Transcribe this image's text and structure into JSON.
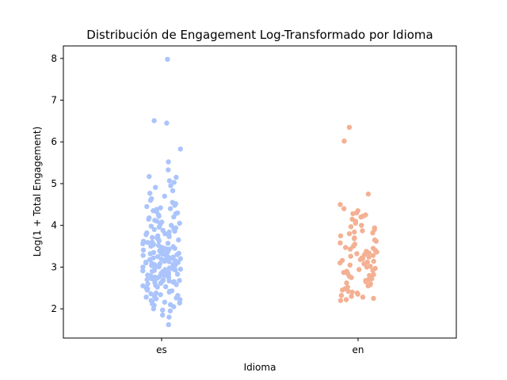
{
  "chart_data": {
    "type": "scatter",
    "subtype": "strip",
    "title": "Distribución de Engagement Log-Transformado por Idioma",
    "xlabel": "Idioma",
    "ylabel": "Log(1 + Total Engagement)",
    "categories": [
      "es",
      "en"
    ],
    "ylim": [
      1.3,
      8.3
    ],
    "yticks": [
      2,
      3,
      4,
      5,
      6,
      7,
      8
    ],
    "grid": false,
    "legend": "none",
    "colors": {
      "es": "#abc4fb",
      "en": "#f4b093"
    },
    "series": [
      {
        "category": "es",
        "values": [
          7.98,
          6.51,
          6.45,
          5.83,
          5.52,
          5.33,
          5.17,
          5.15,
          5.07,
          5.03,
          4.95,
          4.91,
          4.83,
          4.77,
          4.7,
          4.64,
          4.6,
          4.55,
          4.52,
          4.48,
          4.45,
          4.42,
          4.4,
          4.38,
          4.35,
          4.33,
          4.3,
          4.28,
          4.25,
          4.22,
          4.2,
          4.18,
          4.15,
          4.12,
          4.1,
          4.08,
          4.05,
          4.03,
          4.0,
          3.98,
          3.96,
          3.94,
          3.92,
          3.9,
          3.88,
          3.86,
          3.84,
          3.82,
          3.8,
          3.78,
          3.76,
          3.75,
          3.73,
          3.71,
          3.7,
          3.68,
          3.66,
          3.65,
          3.63,
          3.62,
          3.6,
          3.59,
          3.57,
          3.56,
          3.55,
          3.53,
          3.52,
          3.5,
          3.49,
          3.48,
          3.46,
          3.45,
          3.44,
          3.43,
          3.41,
          3.4,
          3.39,
          3.38,
          3.37,
          3.35,
          3.34,
          3.33,
          3.32,
          3.31,
          3.3,
          3.29,
          3.28,
          3.27,
          3.26,
          3.25,
          3.24,
          3.23,
          3.22,
          3.21,
          3.2,
          3.19,
          3.18,
          3.17,
          3.16,
          3.15,
          3.14,
          3.13,
          3.12,
          3.11,
          3.1,
          3.09,
          3.08,
          3.07,
          3.06,
          3.05,
          3.04,
          3.03,
          3.02,
          3.01,
          3.0,
          2.99,
          2.98,
          2.97,
          2.96,
          2.95,
          2.94,
          2.93,
          2.92,
          2.91,
          2.9,
          2.89,
          2.88,
          2.87,
          2.86,
          2.85,
          2.84,
          2.83,
          2.82,
          2.81,
          2.8,
          2.79,
          2.78,
          2.77,
          2.76,
          2.75,
          2.74,
          2.73,
          2.72,
          2.71,
          2.7,
          2.69,
          2.68,
          2.67,
          2.66,
          2.65,
          2.64,
          2.63,
          2.62,
          2.61,
          2.6,
          2.58,
          2.56,
          2.55,
          2.53,
          2.52,
          2.5,
          2.48,
          2.47,
          2.45,
          2.43,
          2.42,
          2.4,
          2.38,
          2.36,
          2.34,
          2.32,
          2.3,
          2.28,
          2.26,
          2.24,
          2.22,
          2.2,
          2.18,
          2.16,
          2.14,
          2.12,
          2.1,
          2.08,
          2.05,
          2.0,
          1.97,
          1.95,
          1.85,
          1.8,
          1.62
        ]
      },
      {
        "category": "en",
        "values": [
          6.35,
          6.02,
          4.75,
          4.5,
          4.4,
          4.35,
          4.3,
          4.28,
          4.25,
          4.22,
          4.2,
          4.15,
          4.1,
          4.05,
          4.0,
          3.97,
          3.94,
          3.9,
          3.87,
          3.84,
          3.82,
          3.8,
          3.75,
          3.7,
          3.68,
          3.65,
          3.62,
          3.58,
          3.55,
          3.5,
          3.47,
          3.45,
          3.43,
          3.4,
          3.38,
          3.36,
          3.34,
          3.32,
          3.3,
          3.28,
          3.26,
          3.24,
          3.22,
          3.2,
          3.18,
          3.16,
          3.14,
          3.12,
          3.1,
          3.08,
          3.05,
          3.02,
          3.0,
          2.97,
          2.94,
          2.92,
          2.9,
          2.87,
          2.85,
          2.82,
          2.8,
          2.78,
          2.75,
          2.72,
          2.7,
          2.68,
          2.65,
          2.62,
          2.6,
          2.58,
          2.55,
          2.52,
          2.48,
          2.45,
          2.42,
          2.4,
          2.38,
          2.35,
          2.32,
          2.3,
          2.28,
          2.25,
          2.22,
          2.2
        ]
      }
    ]
  }
}
